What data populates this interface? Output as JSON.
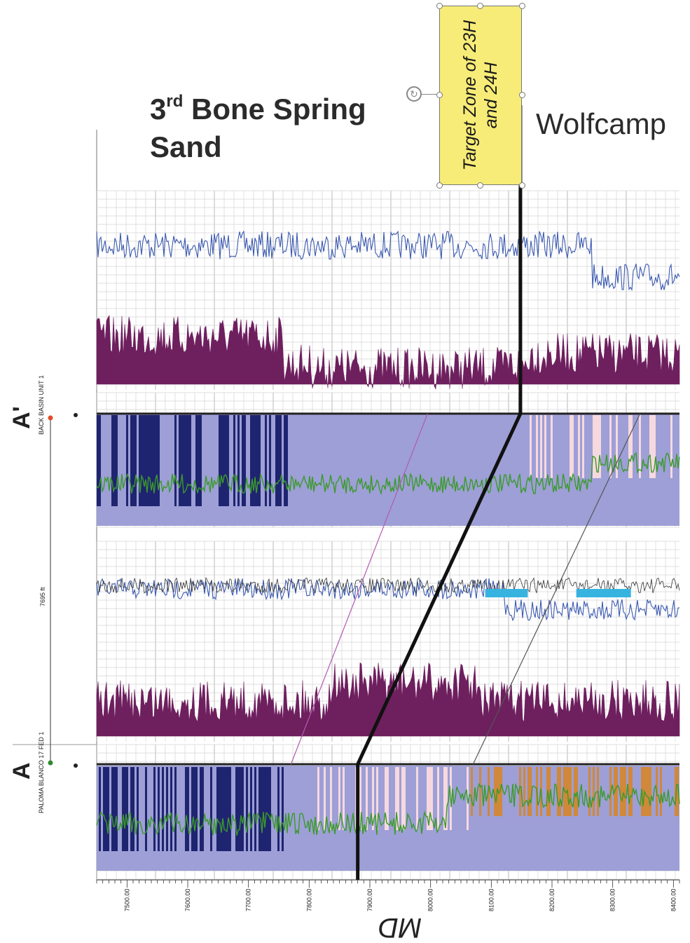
{
  "chart_data": {
    "type": "line",
    "xlabel": "MD",
    "xlim": [
      7450,
      8410
    ],
    "x_ticks": [
      "7500.00",
      "7600.00",
      "7700.00",
      "7800.00",
      "7900.00",
      "8000.00",
      "8100.00",
      "8200.00",
      "8300.00",
      "8400.00"
    ],
    "annotations": {
      "left_formation_sup": "rd",
      "left_formation_prefix": "3",
      "left_formation_line1": "Bone Spring",
      "left_formation_line2": "Sand",
      "right_formation": "Wolfcamp",
      "target_zone": "Target Zone of 23H and 24H"
    },
    "wells": {
      "top_letter": "A'",
      "top_name": "BACK BASIN UNIT 1",
      "bottom_letter": "A",
      "bottom_name": "PALOMA BLANCO 17 FED 1",
      "distance": "7695 ft"
    },
    "correlation_line": {
      "description_points_md": [
        [
          8148,
          "top"
        ],
        [
          8148,
          "well_A_prime"
        ],
        [
          7880,
          "well_A"
        ],
        [
          7880,
          "bottom"
        ]
      ]
    },
    "track_colors": {
      "blue_curve": "#3a59b0",
      "purple_fill": "#6e1f5e",
      "lavender_fill": "#9d9fd6",
      "navy_fill": "#1f2470",
      "green_curve": "#3a9a2a",
      "pink_fill": "#f6d9df",
      "cyan_fill": "#37b3e0",
      "orange_fill": "#d0883a",
      "correlation": "#111111"
    }
  },
  "icons": {
    "rotate": "rotate-icon",
    "resize_handles": "handle-icon"
  }
}
